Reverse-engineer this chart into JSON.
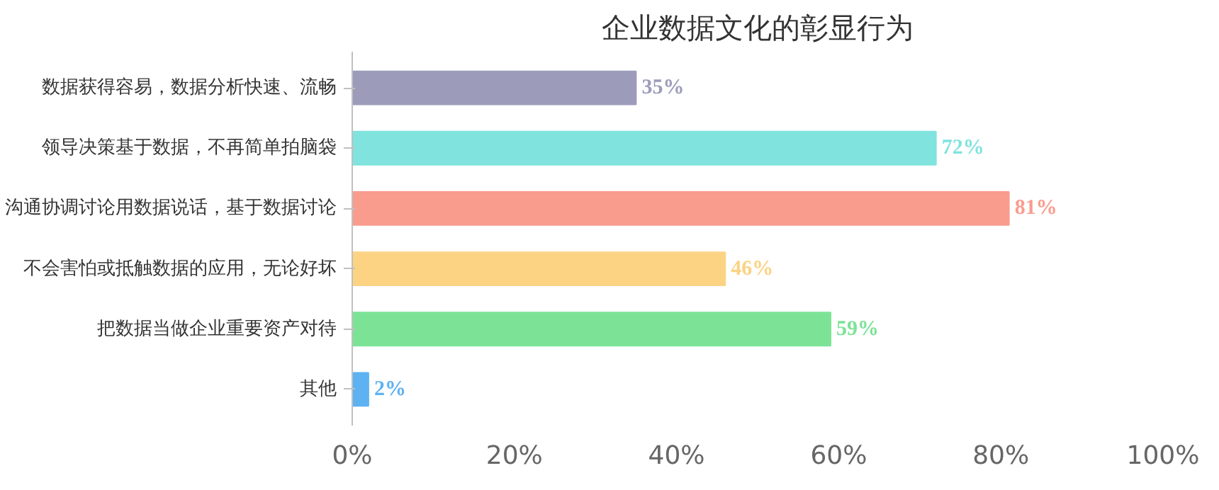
{
  "chart_data": {
    "type": "bar",
    "orientation": "horizontal",
    "title": "企业数据文化的彰显行为",
    "categories": [
      "数据获得容易，数据分析快速、流畅",
      "领导决策基于数据，不再简单拍脑袋",
      "沟通协调讨论用数据说话，基于数据讨论",
      "不会害怕或抵触数据的应用，无论好坏",
      "把数据当做企业重要资产对待",
      "其他"
    ],
    "values": [
      35,
      72,
      81,
      46,
      59,
      2
    ],
    "colors": [
      "#9c9cba",
      "#80e3de",
      "#f99c8e",
      "#fbd383",
      "#7ce396",
      "#5eb2f2"
    ],
    "value_labels": [
      "35%",
      "72%",
      "81%",
      "46%",
      "59%",
      "2%"
    ],
    "xlim": [
      0,
      100
    ],
    "xticks": [
      {
        "value": 0,
        "label": "0%"
      },
      {
        "value": 20,
        "label": "20%"
      },
      {
        "value": 40,
        "label": "40%"
      },
      {
        "value": 60,
        "label": "60%"
      },
      {
        "value": 80,
        "label": "80%"
      },
      {
        "value": 100,
        "label": "100%"
      }
    ],
    "grid": false
  }
}
